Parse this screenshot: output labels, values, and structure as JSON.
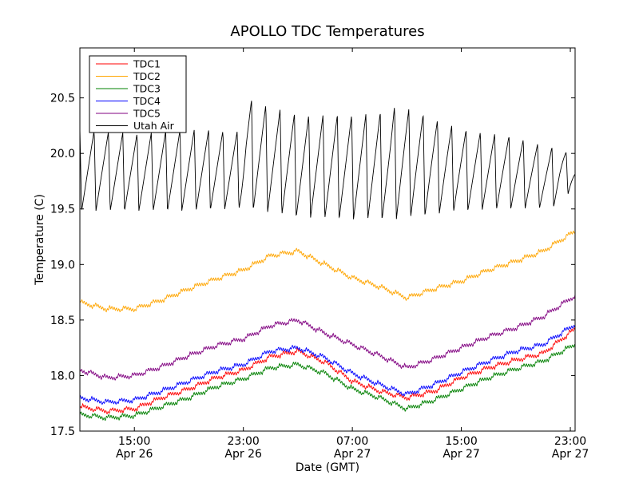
{
  "chart_data": {
    "type": "line",
    "title": "APOLLO TDC Temperatures",
    "xlabel": "Date (GMT)",
    "ylabel": "Temperature (C)",
    "x_unit": "hours since Apr 26 11:00 GMT",
    "xlim": [
      0,
      36.35
    ],
    "ylim": [
      17.5,
      20.95
    ],
    "grid": false,
    "legend_position": "top-left",
    "yticks": [
      {
        "value": 17.5,
        "label": "17.5"
      },
      {
        "value": 18.0,
        "label": "18.0"
      },
      {
        "value": 18.5,
        "label": "18.5"
      },
      {
        "value": 19.0,
        "label": "19.0"
      },
      {
        "value": 19.5,
        "label": "19.5"
      },
      {
        "value": 20.0,
        "label": "20.0"
      },
      {
        "value": 20.5,
        "label": "20.5"
      }
    ],
    "xticks": [
      {
        "value": 4,
        "time": "15:00",
        "date": "Apr 26"
      },
      {
        "value": 12,
        "time": "23:00",
        "date": "Apr 26"
      },
      {
        "value": 20,
        "time": "07:00",
        "date": "Apr 27"
      },
      {
        "value": 28,
        "time": "15:00",
        "date": "Apr 27"
      },
      {
        "value": 36,
        "time": "23:00",
        "date": "Apr 27"
      }
    ],
    "series": [
      {
        "name": "TDC1",
        "color": "#ff0000",
        "x": [
          0,
          2,
          4,
          6,
          8,
          10,
          12,
          14,
          16,
          18,
          20,
          22,
          24,
          26,
          28,
          30,
          32,
          34,
          36.35
        ],
        "y": [
          17.72,
          17.68,
          17.7,
          17.8,
          17.88,
          17.98,
          18.05,
          18.17,
          18.22,
          18.12,
          17.95,
          17.86,
          17.8,
          17.86,
          17.98,
          18.07,
          18.14,
          18.2,
          18.42
        ]
      },
      {
        "name": "TDC2",
        "color": "#ffa500",
        "x": [
          0,
          2,
          4,
          6,
          8,
          10,
          12,
          14,
          16,
          18,
          20,
          22,
          24,
          26,
          28,
          30,
          32,
          34,
          36.35
        ],
        "y": [
          18.66,
          18.6,
          18.6,
          18.68,
          18.78,
          18.87,
          18.95,
          19.08,
          19.12,
          19.0,
          18.88,
          18.8,
          18.7,
          18.78,
          18.85,
          18.95,
          19.03,
          19.12,
          19.3
        ]
      },
      {
        "name": "TDC3",
        "color": "#008000",
        "x": [
          0,
          2,
          4,
          6,
          8,
          10,
          12,
          14,
          16,
          18,
          20,
          22,
          24,
          26,
          28,
          30,
          32,
          34,
          36.35
        ],
        "y": [
          17.65,
          17.62,
          17.64,
          17.72,
          17.8,
          17.9,
          17.97,
          18.07,
          18.1,
          18.02,
          17.88,
          17.8,
          17.7,
          17.78,
          17.88,
          17.98,
          18.06,
          18.13,
          18.28
        ]
      },
      {
        "name": "TDC4",
        "color": "#0000ff",
        "x": [
          0,
          2,
          4,
          6,
          8,
          10,
          12,
          14,
          16,
          18,
          20,
          22,
          24,
          26,
          28,
          30,
          32,
          34,
          36.35
        ],
        "y": [
          17.8,
          17.76,
          17.78,
          17.86,
          17.95,
          18.04,
          18.1,
          18.22,
          18.25,
          18.16,
          18.02,
          17.92,
          17.83,
          17.92,
          18.03,
          18.13,
          18.22,
          18.28,
          18.46
        ]
      },
      {
        "name": "TDC5",
        "color": "#800080",
        "x": [
          0,
          2,
          4,
          6,
          8,
          10,
          12,
          14,
          16,
          18,
          20,
          22,
          24,
          26,
          28,
          30,
          32,
          34,
          36.35
        ],
        "y": [
          18.05,
          17.98,
          18.0,
          18.08,
          18.18,
          18.27,
          18.33,
          18.45,
          18.5,
          18.38,
          18.28,
          18.18,
          18.07,
          18.15,
          18.25,
          18.35,
          18.43,
          18.53,
          18.72
        ]
      },
      {
        "name": "Utah Air",
        "color": "#000000",
        "cycle_hours": 1.05,
        "x": [
          0,
          4,
          8,
          11.8,
          12.2,
          16,
          20,
          22.8,
          23.2,
          28,
          32,
          34.5,
          35.2,
          36.35
        ],
        "peaks": [
          20.22,
          20.18,
          20.22,
          20.2,
          20.5,
          20.35,
          20.35,
          20.38,
          20.45,
          20.22,
          20.15,
          20.05,
          20.1,
          19.9
        ],
        "troughs": [
          19.48,
          19.48,
          19.48,
          19.5,
          19.5,
          19.42,
          19.4,
          19.4,
          19.4,
          19.48,
          19.5,
          19.5,
          19.55,
          19.7
        ]
      }
    ]
  }
}
